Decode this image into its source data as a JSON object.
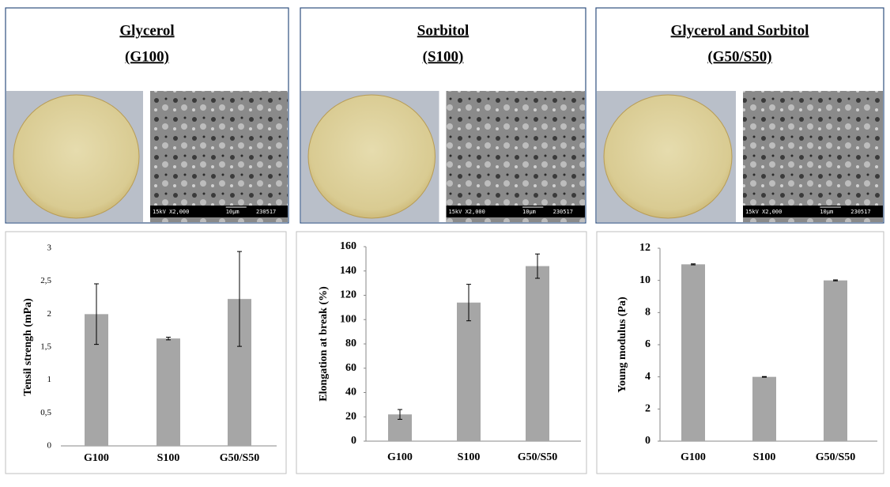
{
  "panels": [
    {
      "title": "Glycerol",
      "code": "(G100)",
      "sem_label": [
        "15kV X2,000",
        "10µm",
        "230517"
      ]
    },
    {
      "title": "Sorbitol",
      "code": "(S100)",
      "sem_label": [
        "15kV X2,000",
        "10µm",
        "230517"
      ]
    },
    {
      "title": "Glycerol and Sorbitol",
      "code": "(G50/S50)",
      "sem_label": [
        "15kV X2,000",
        "10µm",
        "230517"
      ]
    }
  ],
  "chart_data": [
    {
      "type": "bar",
      "y_label": "Tensil strengh (mPa)",
      "categories": [
        "G100",
        "S100",
        "G50/S50"
      ],
      "values": [
        2.0,
        1.63,
        2.23
      ],
      "errors": [
        0.46,
        0.02,
        0.72
      ],
      "color": "#a6a6a6",
      "ylim": [
        0,
        3
      ],
      "yticks": [
        0,
        {
          "value": 0.5,
          "label": "0,5"
        },
        1,
        {
          "value": 1.5,
          "label": "1,5"
        },
        2,
        {
          "value": 2.5,
          "label": "2,5"
        },
        3
      ]
    },
    {
      "type": "bar",
      "y_label": "Elongation at break (%)",
      "categories": [
        "G100",
        "S100",
        "G50/S50"
      ],
      "values": [
        22,
        114,
        144
      ],
      "errors": [
        4,
        15,
        10
      ],
      "color": "#a6a6a6",
      "ylim": [
        0,
        160
      ],
      "yticks": [
        0,
        20,
        40,
        60,
        80,
        100,
        120,
        140,
        160
      ]
    },
    {
      "type": "bar",
      "y_label": "Young modulus (Pa)",
      "categories": [
        "G100",
        "S100",
        "G50/S50"
      ],
      "values": [
        11,
        4,
        10
      ],
      "errors": [
        0.03,
        0.02,
        0.03
      ],
      "color": "#a6a6a6",
      "ylim": [
        0,
        12
      ],
      "yticks": [
        0,
        2,
        4,
        6,
        8,
        10,
        12
      ]
    }
  ]
}
